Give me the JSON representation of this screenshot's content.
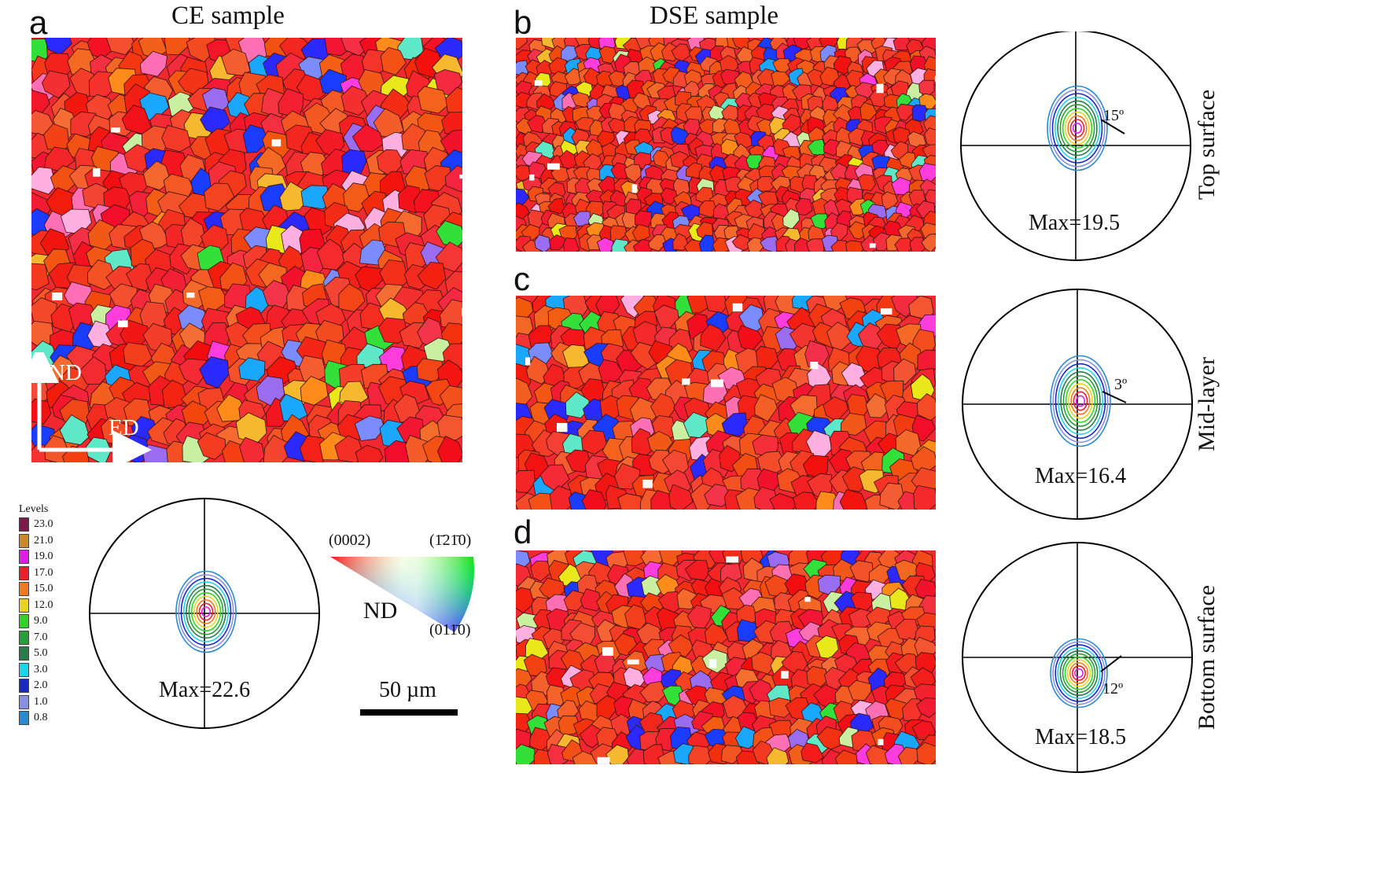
{
  "panels": {
    "a": {
      "label": "a",
      "title": "CE sample"
    },
    "b": {
      "label": "b",
      "title": "DSE sample"
    },
    "c": {
      "label": "c"
    },
    "d": {
      "label": "d"
    }
  },
  "axes": {
    "nd": "ND",
    "ed": "ED"
  },
  "legend": {
    "title": "Levels",
    "levels": [
      {
        "value": "23.0",
        "color": "#7a1c4a"
      },
      {
        "value": "21.0",
        "color": "#c98a2a"
      },
      {
        "value": "19.0",
        "color": "#e01ce8"
      },
      {
        "value": "17.0",
        "color": "#e8202a"
      },
      {
        "value": "15.0",
        "color": "#f07a20"
      },
      {
        "value": "12.0",
        "color": "#e8d420"
      },
      {
        "value": "9.0",
        "color": "#33d12a"
      },
      {
        "value": "7.0",
        "color": "#2a9e3a"
      },
      {
        "value": "5.0",
        "color": "#2a7a4a"
      },
      {
        "value": "3.0",
        "color": "#20d4e8"
      },
      {
        "value": "2.0",
        "color": "#1a28c8"
      },
      {
        "value": "1.0",
        "color": "#8a90e0"
      },
      {
        "value": "0.8",
        "color": "#2a8ad0"
      }
    ]
  },
  "pole_figures": {
    "ce": {
      "max_label": "Max=22.6"
    },
    "top": {
      "max_label": "Max=19.5",
      "angle": "15º",
      "side_label": "Top surface"
    },
    "mid": {
      "max_label": "Max=16.4",
      "angle": "3º",
      "side_label": "Mid-layer"
    },
    "bottom": {
      "max_label": "Max=18.5",
      "angle": "12º",
      "side_label": "Bottom surface"
    }
  },
  "ipf": {
    "corner_0002": "(0002)",
    "corner_1210": "(1̄21̄0)",
    "corner_0110": "(011̄0)",
    "axis": "ND"
  },
  "scale_bar": {
    "label": "50 µm"
  }
}
